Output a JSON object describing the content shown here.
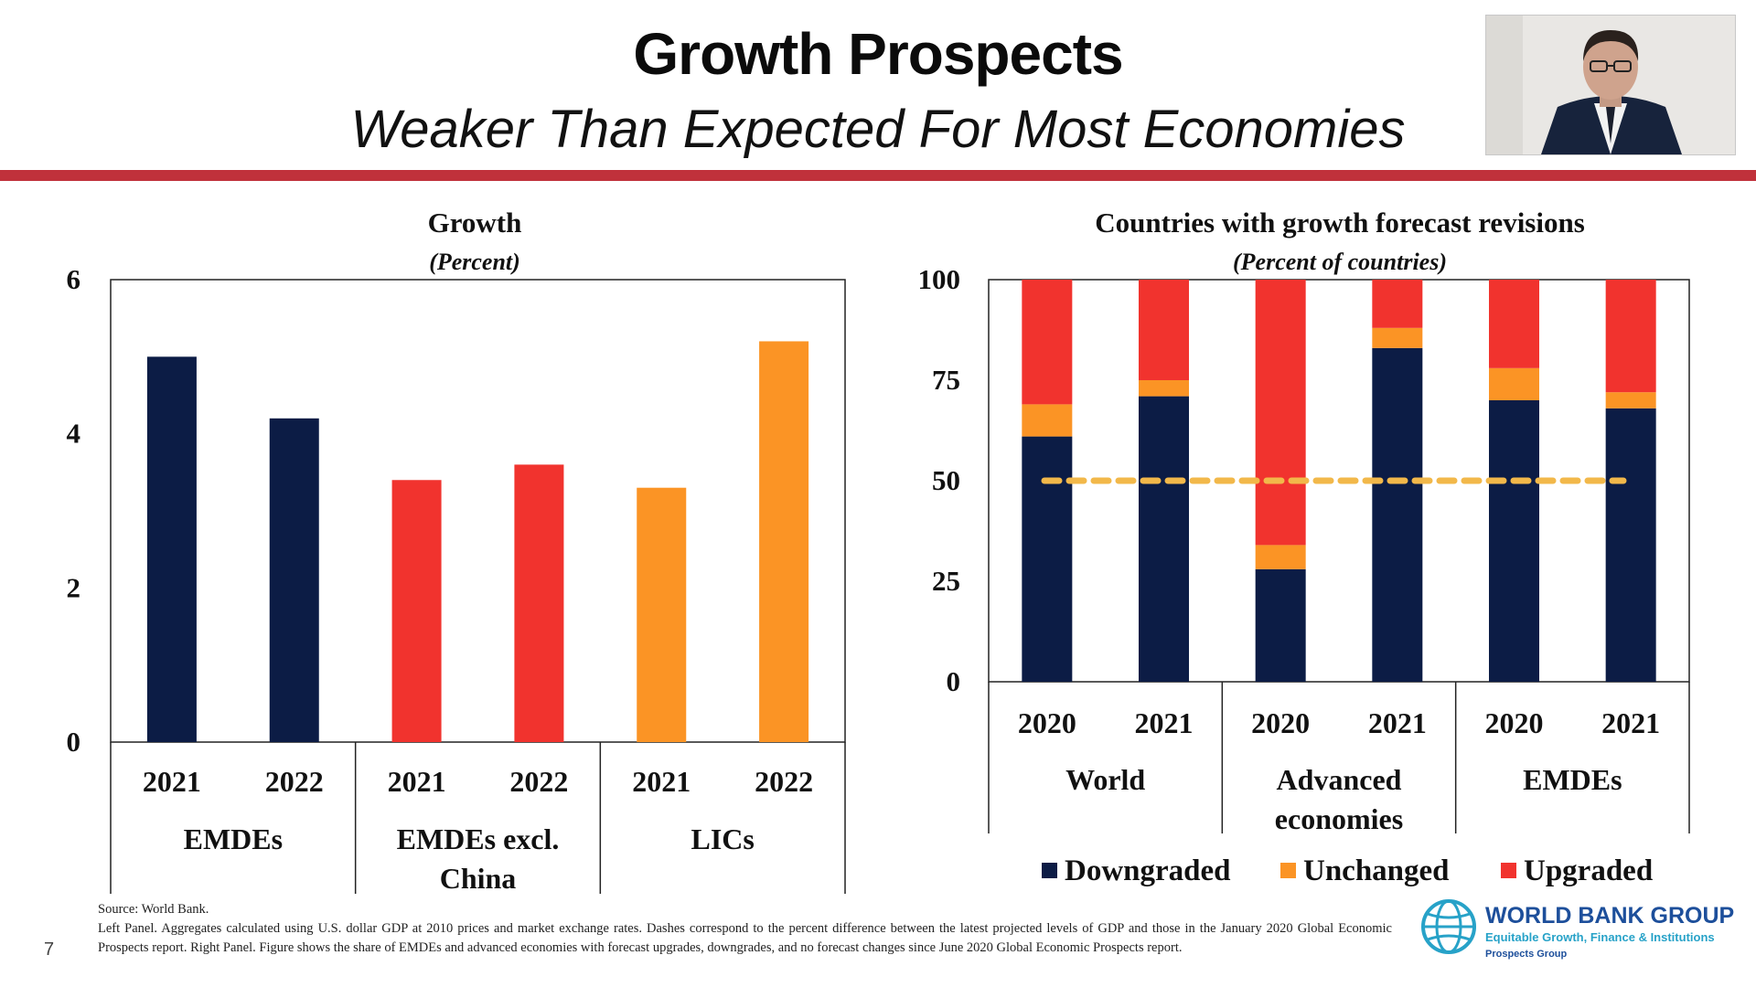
{
  "slide": {
    "title": "Growth Prospects",
    "subtitle": "Weaker Than Expected For Most Economies",
    "page_number": "7"
  },
  "colors": {
    "navy": "#0c1c45",
    "red": "#f1332e",
    "orange": "#fb9425",
    "rule": "#c0313b",
    "dash": "#f2b84a"
  },
  "footer": {
    "source": "Source: World Bank.",
    "note": "Left Panel. Aggregates calculated using U.S. dollar GDP at 2010 prices and market exchange rates. Dashes correspond to the percent difference between the latest projected levels of GDP and those in the January 2020 Global Economic Prospects report. Right Panel. Figure shows the share of EMDEs and advanced economies with forecast upgrades, downgrades, and no forecast changes since June 2020 Global Economic Prospects report."
  },
  "logo": {
    "name": "WORLD BANK GROUP",
    "tagline": "Equitable Growth, Finance & Institutions",
    "group": "Prospects Group"
  },
  "chart_data": [
    {
      "type": "bar",
      "title": "Growth",
      "subtitle": "(Percent)",
      "ylim": [
        0,
        6
      ],
      "yticks": [
        0,
        2,
        4,
        6
      ],
      "groups": [
        {
          "name": "EMDEs",
          "color": "navy",
          "bars": [
            {
              "label": "2021",
              "value": 5.0
            },
            {
              "label": "2022",
              "value": 4.2
            }
          ]
        },
        {
          "name": "EMDEs excl. China",
          "color": "red",
          "bars": [
            {
              "label": "2021",
              "value": 3.4
            },
            {
              "label": "2022",
              "value": 3.6
            }
          ]
        },
        {
          "name": "LICs",
          "color": "orange",
          "bars": [
            {
              "label": "2021",
              "value": 3.3
            },
            {
              "label": "2022",
              "value": 5.2
            }
          ]
        }
      ]
    },
    {
      "type": "stacked_bar",
      "title": "Countries with growth forecast revisions",
      "subtitle": "(Percent of countries)",
      "ylim": [
        0,
        100
      ],
      "yticks": [
        0,
        25,
        50,
        75,
        100
      ],
      "reference_line": 50,
      "series": [
        {
          "name": "Downgraded",
          "color": "navy"
        },
        {
          "name": "Unchanged",
          "color": "orange"
        },
        {
          "name": "Upgraded",
          "color": "red"
        }
      ],
      "groups": [
        {
          "name": "World",
          "bars": [
            {
              "label": "2020",
              "Downgraded": 61,
              "Unchanged": 8,
              "Upgraded": 31
            },
            {
              "label": "2021",
              "Downgraded": 71,
              "Unchanged": 4,
              "Upgraded": 25
            }
          ]
        },
        {
          "name": "Advanced economies",
          "bars": [
            {
              "label": "2020",
              "Downgraded": 28,
              "Unchanged": 6,
              "Upgraded": 66
            },
            {
              "label": "2021",
              "Downgraded": 83,
              "Unchanged": 5,
              "Upgraded": 12
            }
          ]
        },
        {
          "name": "EMDEs",
          "bars": [
            {
              "label": "2020",
              "Downgraded": 70,
              "Unchanged": 8,
              "Upgraded": 22
            },
            {
              "label": "2021",
              "Downgraded": 68,
              "Unchanged": 4,
              "Upgraded": 28
            }
          ]
        }
      ]
    }
  ]
}
